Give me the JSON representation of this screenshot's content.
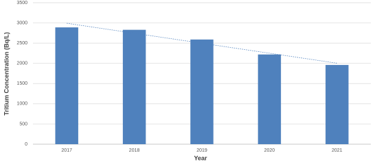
{
  "chart_data": {
    "type": "bar",
    "x_label": "Year",
    "y_label": "Tritium Concentration (Bq/L)",
    "categories": [
      "2017",
      "2018",
      "2019",
      "2020",
      "2021"
    ],
    "values": [
      2890,
      2830,
      2590,
      2220,
      1960
    ],
    "color": "#4f81bd",
    "ylim": [
      0,
      3500
    ],
    "yticks": [
      0,
      500,
      1000,
      1500,
      2000,
      2500,
      3000,
      3500
    ],
    "grid": true,
    "trendline": "linear",
    "trendline_color": "#4f81bd"
  }
}
